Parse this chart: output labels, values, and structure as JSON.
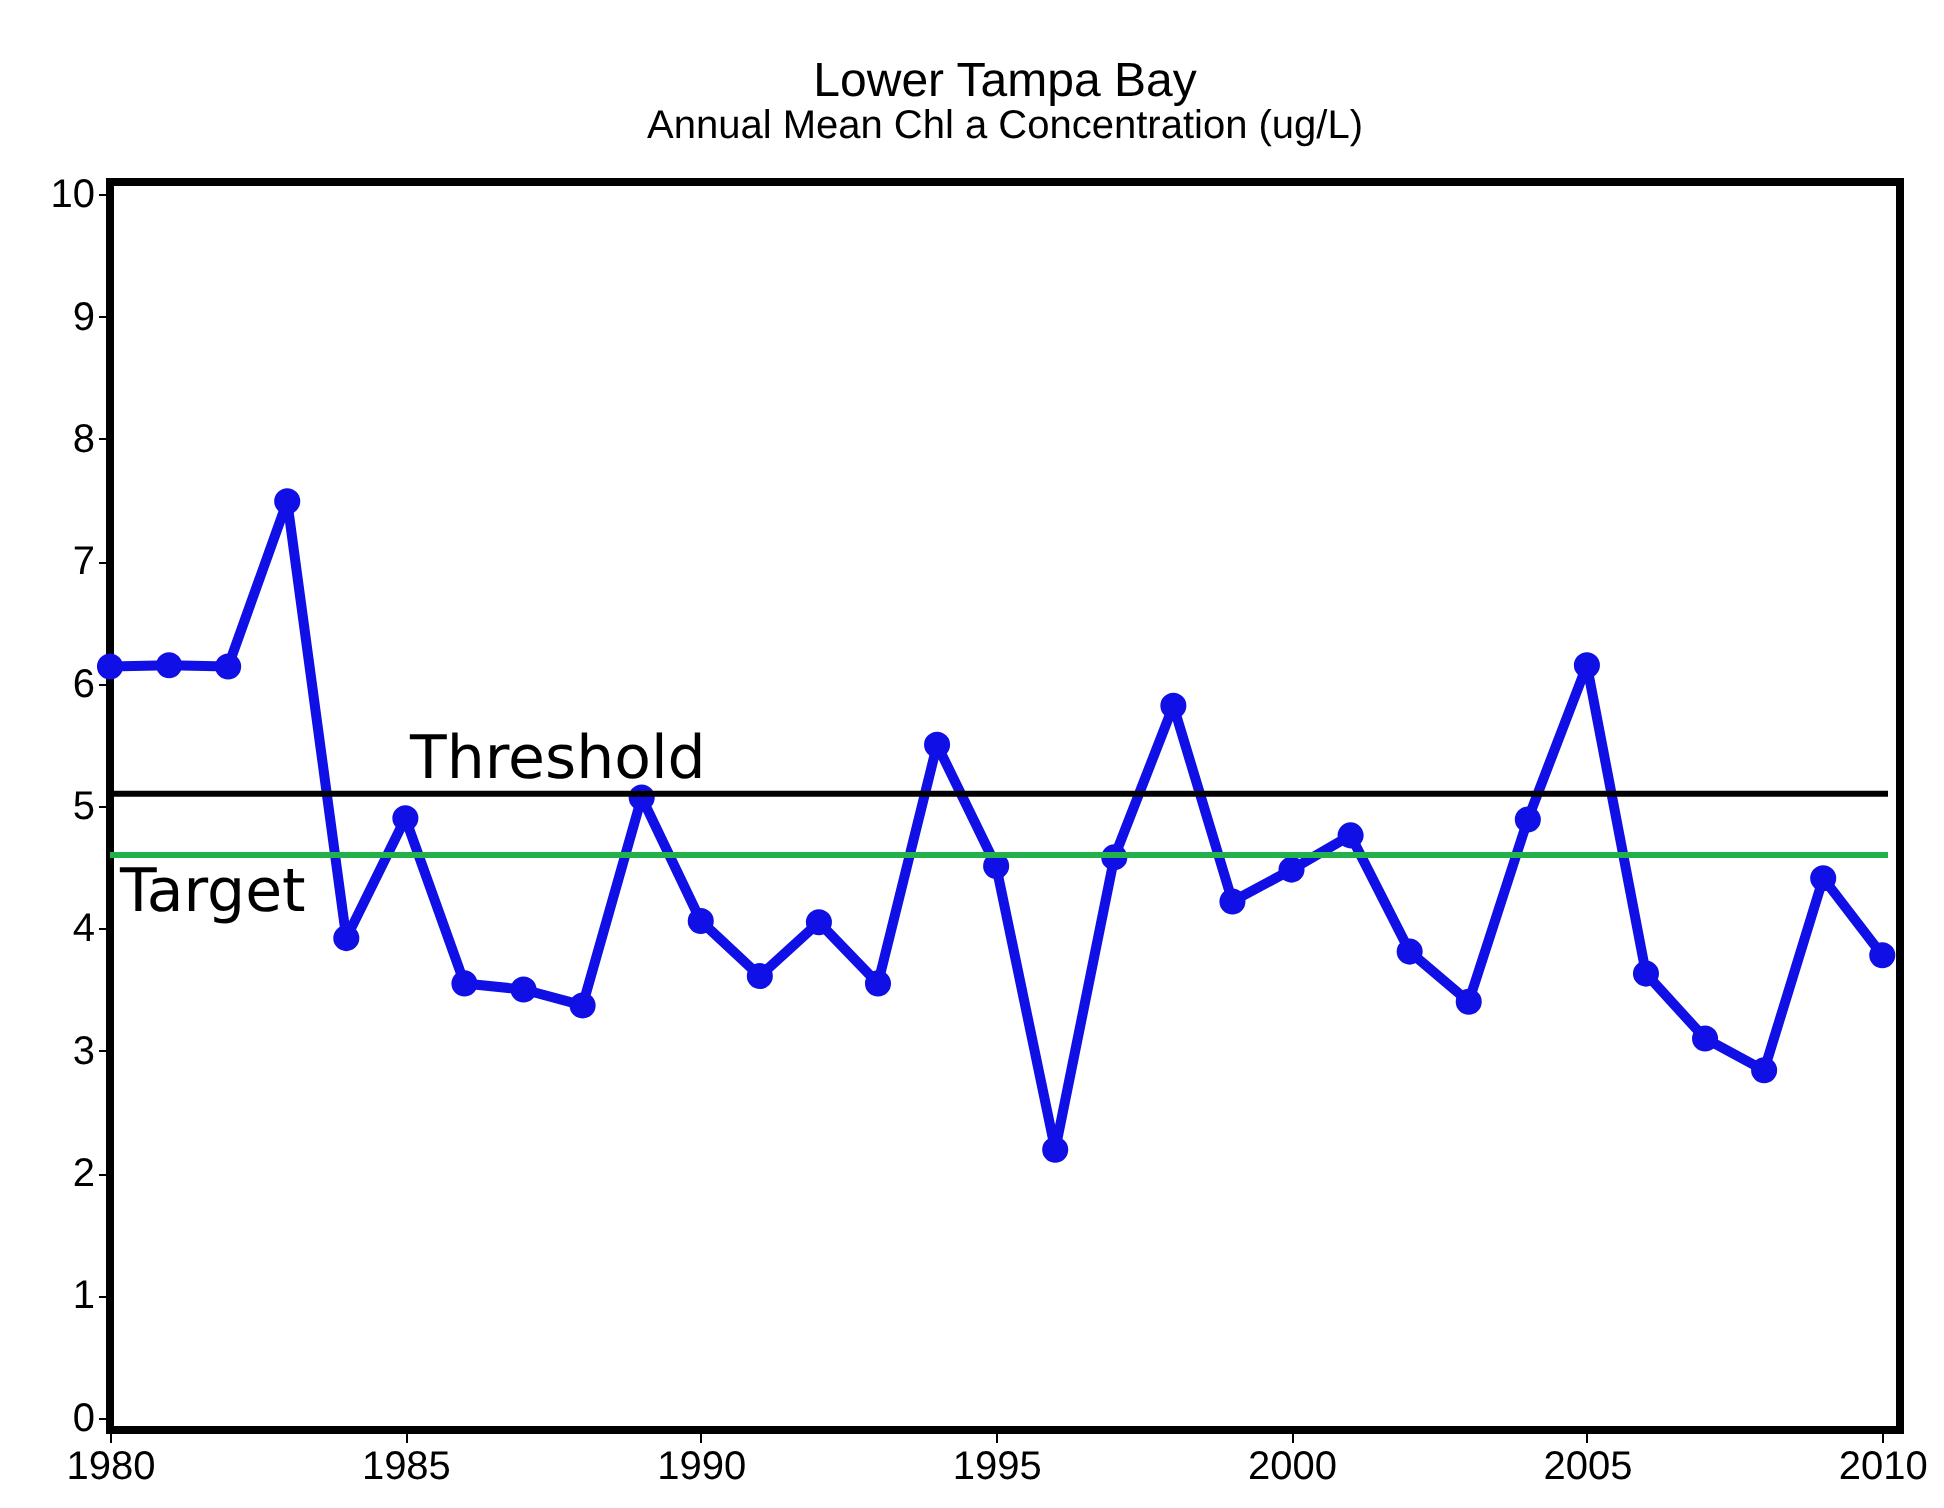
{
  "chart_data": {
    "type": "line",
    "title": "Lower Tampa  Bay",
    "subtitle": "Annual Mean Chl a Concentration (ug/L)",
    "x": [
      1980,
      1981,
      1982,
      1983,
      1984,
      1985,
      1986,
      1987,
      1988,
      1989,
      1990,
      1991,
      1992,
      1993,
      1994,
      1995,
      1996,
      1997,
      1998,
      1999,
      2000,
      2001,
      2002,
      2003,
      2004,
      2005,
      2006,
      2007,
      2008,
      2009,
      2010
    ],
    "series": [
      {
        "color": "#1010e6",
        "values": [
          6.14,
          6.15,
          6.14,
          7.49,
          3.92,
          4.9,
          3.55,
          3.5,
          3.37,
          5.07,
          4.06,
          3.61,
          4.05,
          3.55,
          5.5,
          4.51,
          2.19,
          4.58,
          5.82,
          4.22,
          4.48,
          4.76,
          3.81,
          3.4,
          4.89,
          6.15,
          3.63,
          3.1,
          2.84,
          4.41,
          3.78
        ]
      }
    ],
    "marker": "circle",
    "line_style": "solid",
    "xlim": [
      1980,
      2010.3
    ],
    "xticks": [
      1980,
      1985,
      1990,
      1995,
      2000,
      2005,
      2010
    ],
    "ylim": [
      -0.1,
      10.1
    ],
    "yticks": [
      0,
      1,
      2,
      3,
      4,
      5,
      6,
      7,
      8,
      9,
      10
    ],
    "ref_lines": [
      {
        "axis": "y",
        "value": 5.1,
        "label": "Threshold",
        "color": "#000000"
      },
      {
        "axis": "y",
        "value": 4.6,
        "label": "Target",
        "color": "#22b04b"
      }
    ],
    "grid": false
  }
}
